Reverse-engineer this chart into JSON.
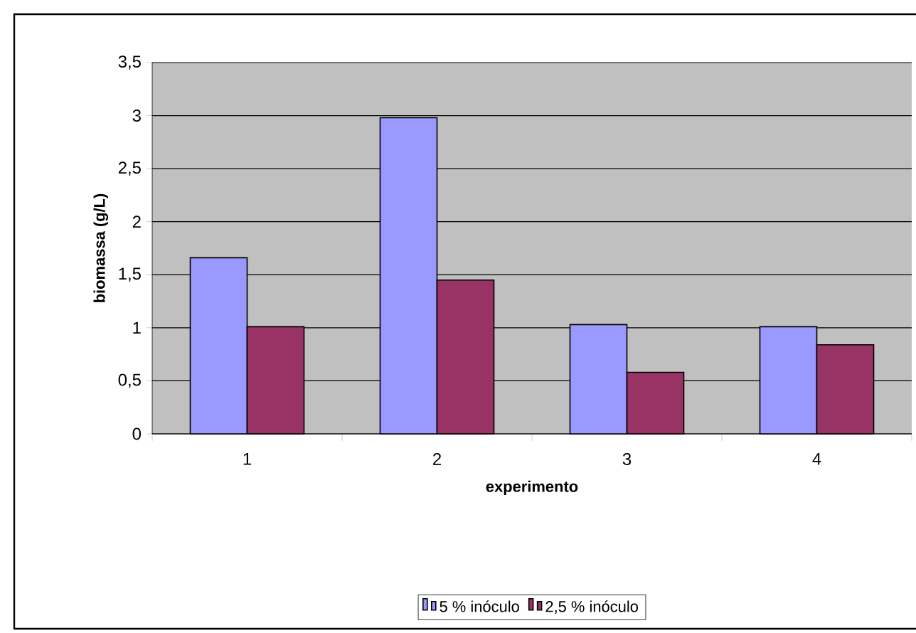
{
  "chart_data": {
    "type": "bar",
    "xlabel": "experimento",
    "ylabel": "biomassa (g/L)",
    "categories": [
      "1",
      "2",
      "3",
      "4"
    ],
    "series": [
      {
        "name": "5 % inóculo",
        "color": "#9999ff",
        "values": [
          1.66,
          2.98,
          1.03,
          1.01
        ]
      },
      {
        "name": "2,5 % inóculo",
        "color": "#993366",
        "values": [
          1.01,
          1.45,
          0.58,
          0.84
        ]
      }
    ],
    "ylim": [
      0,
      3.5
    ],
    "yticks": [
      0,
      {
        "value": 0.5,
        "label": "0,5"
      },
      1,
      {
        "value": 1.5,
        "label": "1,5"
      },
      2,
      {
        "value": 2.5,
        "label": "2,5"
      },
      3,
      {
        "value": 3.5,
        "label": "3,5"
      }
    ],
    "grid": "y",
    "legend": "bottom"
  }
}
